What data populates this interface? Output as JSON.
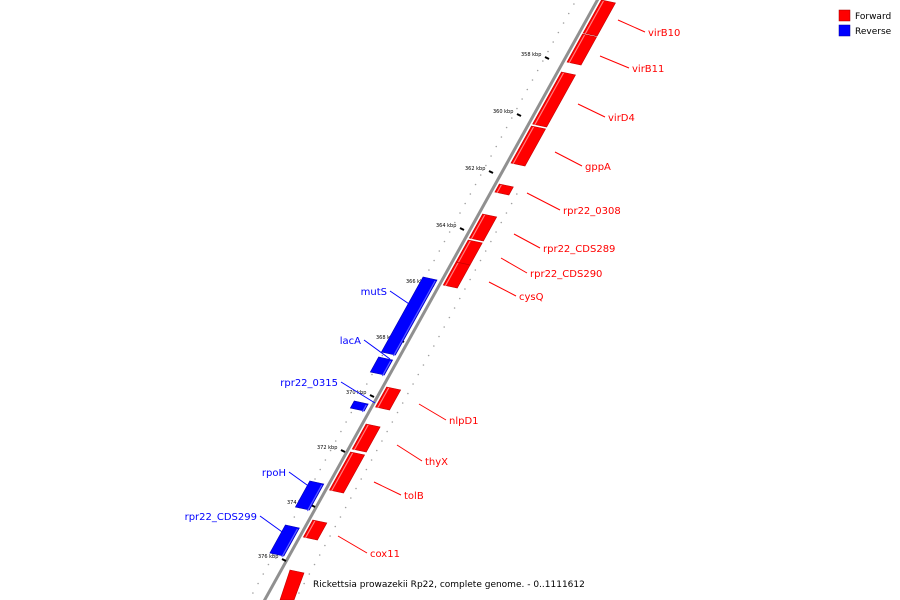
{
  "legend": {
    "forward_label": "Forward",
    "reverse_label": "Reverse",
    "forward_color": "#ff0000",
    "reverse_color": "#0000ff"
  },
  "caption": "Rickettsia prowazekii Rp22, complete genome. - 0..1111612",
  "ticks": [
    "358 kbp",
    "360 kbp",
    "362 kbp",
    "364 kbp",
    "366 kbp",
    "368 kbp",
    "370 kbp",
    "372 kbp",
    "374 kbp",
    "376 kbp"
  ],
  "genes": [
    {
      "name": "virB10",
      "strand": "forward"
    },
    {
      "name": "virB11",
      "strand": "forward"
    },
    {
      "name": "virD4",
      "strand": "forward"
    },
    {
      "name": "gppA",
      "strand": "forward"
    },
    {
      "name": "rpr22_0308",
      "strand": "forward"
    },
    {
      "name": "rpr22_CDS289",
      "strand": "forward"
    },
    {
      "name": "rpr22_CDS290",
      "strand": "forward"
    },
    {
      "name": "cysQ",
      "strand": "forward"
    },
    {
      "name": "mutS",
      "strand": "reverse"
    },
    {
      "name": "lacA",
      "strand": "reverse"
    },
    {
      "name": "rpr22_0315",
      "strand": "reverse"
    },
    {
      "name": "nlpD1",
      "strand": "forward"
    },
    {
      "name": "thyX",
      "strand": "forward"
    },
    {
      "name": "tolB",
      "strand": "forward"
    },
    {
      "name": "rpoH",
      "strand": "reverse"
    },
    {
      "name": "rpr22_CDS299",
      "strand": "reverse"
    },
    {
      "name": "cox11",
      "strand": "forward"
    }
  ]
}
